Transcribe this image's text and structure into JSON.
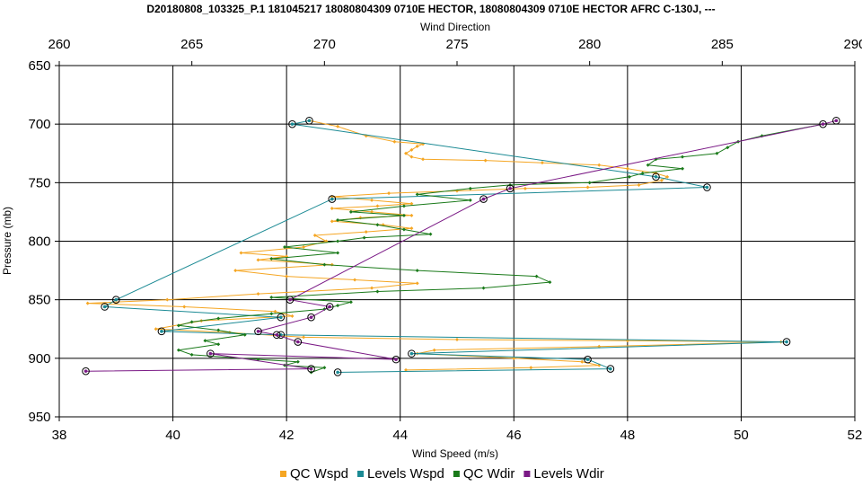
{
  "chart_data": {
    "type": "line",
    "title": "D20180808_103325_P.1 181045217 18080804309 0710E HECTOR, 18080804309 0710E HECTOR AFRC C-130J, ---",
    "xlabel_bottom": "Wind Speed (m/s)",
    "xlabel_top": "Wind Direction",
    "ylabel": "Pressure (mb)",
    "x_bottom_range": [
      38,
      52
    ],
    "x_bottom_ticks": [
      "38",
      "40",
      "42",
      "44",
      "46",
      "48",
      "50",
      "52"
    ],
    "x_top_range": [
      260,
      290
    ],
    "x_top_ticks": [
      "260",
      "265",
      "270",
      "275",
      "280",
      "285",
      "290"
    ],
    "y_range": [
      650,
      950
    ],
    "y_inverted": true,
    "y_ticks": [
      "650",
      "700",
      "750",
      "800",
      "850",
      "900",
      "950"
    ],
    "grid": true,
    "legend_position": "bottom",
    "series": [
      {
        "name": "QC Wspd",
        "axis": "bottom",
        "color": "#f5a623",
        "marker": "diamond",
        "points": [
          [
            42.4,
            697
          ],
          [
            42.9,
            702
          ],
          [
            43.4,
            710
          ],
          [
            43.9,
            715
          ],
          [
            44.4,
            717
          ],
          [
            44.3,
            719
          ],
          [
            44.2,
            722
          ],
          [
            44.1,
            725
          ],
          [
            44.2,
            728
          ],
          [
            44.4,
            730
          ],
          [
            45.5,
            731
          ],
          [
            46.5,
            733
          ],
          [
            47.5,
            735
          ],
          [
            48.0,
            738
          ],
          [
            48.5,
            742
          ],
          [
            48.7,
            745
          ],
          [
            48.6,
            748
          ],
          [
            48.2,
            752
          ],
          [
            47.3,
            754
          ],
          [
            46.2,
            755
          ],
          [
            45.0,
            757
          ],
          [
            43.8,
            759
          ],
          [
            42.8,
            762
          ],
          [
            43.5,
            765
          ],
          [
            44.2,
            768
          ],
          [
            43.6,
            770
          ],
          [
            42.8,
            772
          ],
          [
            43.5,
            775
          ],
          [
            44.2,
            778
          ],
          [
            43.3,
            780
          ],
          [
            42.8,
            783
          ],
          [
            43.7,
            786
          ],
          [
            44.2,
            789
          ],
          [
            43.4,
            792
          ],
          [
            42.5,
            795
          ],
          [
            42.7,
            800
          ],
          [
            42.3,
            805
          ],
          [
            41.2,
            810
          ],
          [
            42.0,
            813
          ],
          [
            41.5,
            816
          ],
          [
            42.8,
            820
          ],
          [
            41.1,
            825
          ],
          [
            42.0,
            830
          ],
          [
            43.2,
            833
          ],
          [
            44.3,
            836
          ],
          [
            43.5,
            840
          ],
          [
            41.5,
            845
          ],
          [
            39.9,
            850
          ],
          [
            38.5,
            853
          ],
          [
            40.2,
            856
          ],
          [
            41.8,
            860
          ],
          [
            42.1,
            864
          ],
          [
            40.5,
            868
          ],
          [
            39.7,
            875
          ],
          [
            41.0,
            878
          ],
          [
            42.3,
            882
          ],
          [
            45.0,
            884
          ],
          [
            48.0,
            885
          ],
          [
            50.7,
            886
          ],
          [
            47.5,
            890
          ],
          [
            44.6,
            893
          ],
          [
            44.3,
            896
          ],
          [
            46.0,
            900
          ],
          [
            47.2,
            903
          ],
          [
            47.5,
            906
          ],
          [
            46.3,
            908
          ],
          [
            44.1,
            910
          ]
        ]
      },
      {
        "name": "Levels Wspd",
        "axis": "bottom",
        "color": "#1b8a94",
        "marker": "circle",
        "points": [
          [
            42.4,
            697
          ],
          [
            42.1,
            700
          ],
          [
            48.5,
            745
          ],
          [
            49.4,
            754
          ],
          [
            42.8,
            764
          ],
          [
            39.0,
            850
          ],
          [
            38.8,
            856
          ],
          [
            41.9,
            865
          ],
          [
            39.8,
            877
          ],
          [
            41.9,
            880
          ],
          [
            50.8,
            886
          ],
          [
            44.2,
            896
          ],
          [
            47.3,
            901
          ],
          [
            47.7,
            909
          ],
          [
            42.9,
            912
          ]
        ]
      },
      {
        "name": "QC Wdir",
        "axis": "top",
        "color": "#1a7a1a",
        "marker": "diamond",
        "points": [
          [
            288.8,
            700
          ],
          [
            286.5,
            710
          ],
          [
            285.6,
            715
          ],
          [
            285.2,
            720
          ],
          [
            284.8,
            725
          ],
          [
            283.5,
            728
          ],
          [
            282.5,
            730
          ],
          [
            282.2,
            735
          ],
          [
            283.5,
            738
          ],
          [
            282.0,
            742
          ],
          [
            281.5,
            745
          ],
          [
            280.0,
            750
          ],
          [
            277.0,
            752
          ],
          [
            275.5,
            755
          ],
          [
            273.5,
            760
          ],
          [
            275.5,
            765
          ],
          [
            273.0,
            770
          ],
          [
            271.0,
            775
          ],
          [
            273.0,
            778
          ],
          [
            270.5,
            782
          ],
          [
            272.0,
            786
          ],
          [
            273.0,
            790
          ],
          [
            274.0,
            794
          ],
          [
            271.5,
            797
          ],
          [
            270.5,
            800
          ],
          [
            268.5,
            805
          ],
          [
            270.5,
            810
          ],
          [
            268.0,
            815
          ],
          [
            270.0,
            820
          ],
          [
            273.5,
            825
          ],
          [
            278.0,
            830
          ],
          [
            278.5,
            835
          ],
          [
            276.0,
            840
          ],
          [
            272.0,
            843
          ],
          [
            268.0,
            848
          ],
          [
            271.0,
            852
          ],
          [
            270.5,
            855
          ],
          [
            270.0,
            858
          ],
          [
            268.0,
            862
          ],
          [
            266.0,
            866
          ],
          [
            265.0,
            869
          ],
          [
            264.5,
            872
          ],
          [
            266.0,
            876
          ],
          [
            267.0,
            880
          ],
          [
            265.5,
            885
          ],
          [
            266.0,
            888
          ],
          [
            264.5,
            893
          ],
          [
            265.0,
            897
          ],
          [
            267.5,
            901
          ],
          [
            269.0,
            903
          ],
          [
            268.5,
            906
          ],
          [
            270.0,
            908
          ],
          [
            269.5,
            912
          ]
        ]
      },
      {
        "name": "Levels Wdir",
        "axis": "top",
        "color": "#7b1a86",
        "marker": "circle",
        "points": [
          [
            289.3,
            697
          ],
          [
            288.8,
            700
          ],
          [
            277.0,
            755
          ],
          [
            276.0,
            764
          ],
          [
            268.7,
            850
          ],
          [
            270.2,
            856
          ],
          [
            269.5,
            865
          ],
          [
            267.5,
            877
          ],
          [
            268.2,
            880
          ],
          [
            269.0,
            886
          ],
          [
            272.7,
            901
          ],
          [
            265.7,
            896
          ],
          [
            269.5,
            909
          ],
          [
            261.0,
            911
          ]
        ]
      }
    ]
  }
}
